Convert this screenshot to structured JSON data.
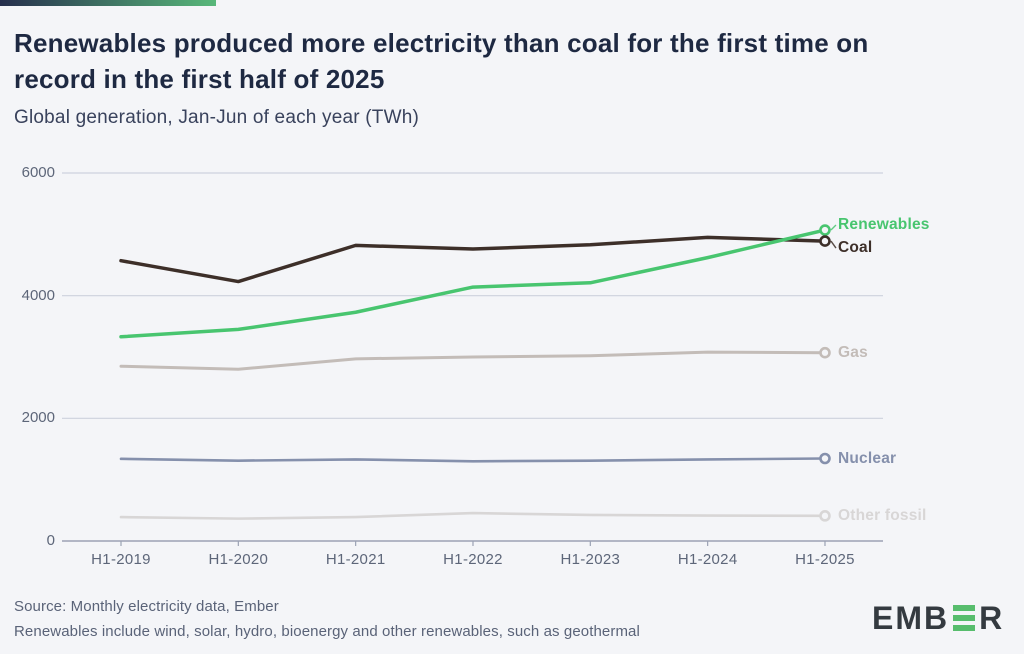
{
  "page": {
    "background": "#f4f5f8",
    "accent_gradient_from": "#262f4d",
    "accent_gradient_to": "#58b87a"
  },
  "header": {
    "title_line1": "Renewables produced more electricity than coal for the first time on",
    "title_line2": "record in the first half of 2025"
  },
  "chart_data": {
    "type": "line",
    "title": "Renewables produced more electricity than coal for the first time on record in the first half of 2025",
    "subtitle": "Global generation, Jan-Jun of each year (TWh)",
    "unit": "TWh",
    "x_categories": [
      "H1-2019",
      "H1-2020",
      "H1-2021",
      "H1-2022",
      "H1-2023",
      "H1-2024",
      "H1-2025"
    ],
    "y_axis": {
      "ticks": [
        0,
        2000,
        4000,
        6000
      ],
      "range": [
        0,
        6400
      ],
      "gridlines": true
    },
    "legend_position": "line-end labels at right",
    "series": [
      {
        "name": "Renewables",
        "color": "#48c56f",
        "values": [
          3330,
          3450,
          3730,
          4140,
          4210,
          4620,
          5070
        ]
      },
      {
        "name": "Coal",
        "color": "#3d2f29",
        "values": [
          4570,
          4230,
          4820,
          4760,
          4830,
          4950,
          4890
        ]
      },
      {
        "name": "Gas",
        "color": "#c3bcb8",
        "values": [
          2850,
          2800,
          2970,
          3000,
          3020,
          3080,
          3070
        ]
      },
      {
        "name": "Nuclear",
        "color": "#8590ac",
        "values": [
          1340,
          1310,
          1330,
          1300,
          1310,
          1330,
          1345
        ]
      },
      {
        "name": "Other fossil",
        "color": "#d8d6d6",
        "values": [
          390,
          365,
          390,
          455,
          425,
          415,
          410
        ]
      }
    ]
  },
  "footer": {
    "source": "Source: Monthly electricity data, Ember",
    "note": "Renewables include wind, solar, hydro, bioenergy and other renewables, such as geothermal"
  },
  "logo": {
    "prefix": "EMB",
    "suffix": "R",
    "bar_color": "#57bd6d",
    "text_color": "#343a40"
  }
}
